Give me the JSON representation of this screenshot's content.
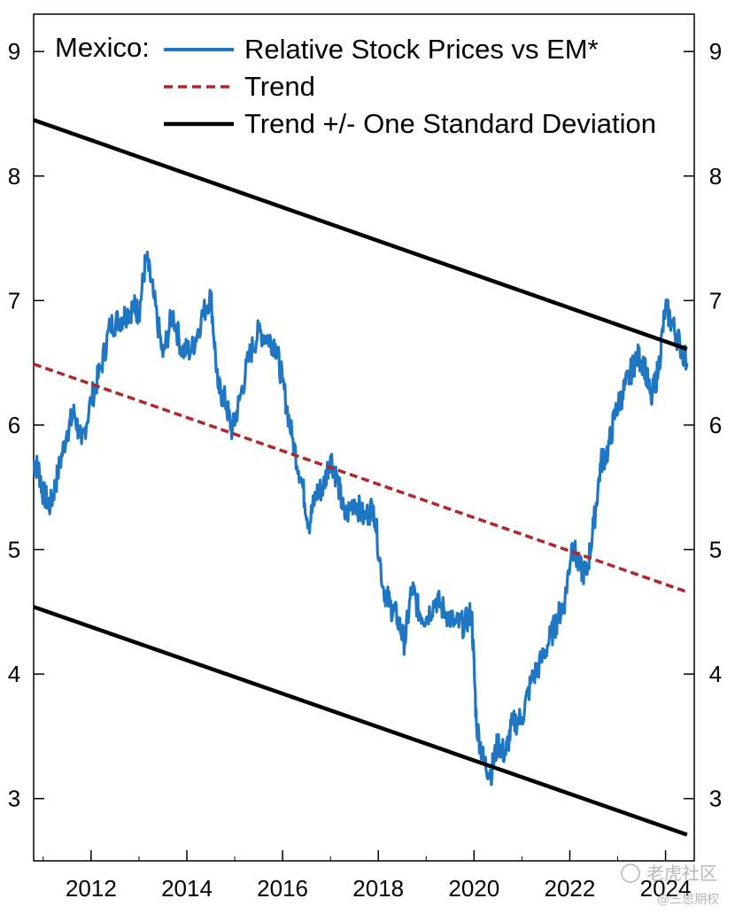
{
  "chart_data": {
    "type": "line",
    "title": "",
    "xlabel": "",
    "ylabel": "",
    "xlim": [
      2010.8,
      2024.6
    ],
    "ylim": [
      2.5,
      9.3
    ],
    "x_ticks": [
      2012,
      2014,
      2016,
      2018,
      2020,
      2022,
      2024
    ],
    "x_tick_labels": [
      "2012",
      "2014",
      "2016",
      "2018",
      "2020",
      "2022",
      "2024"
    ],
    "y_ticks": [
      3,
      4,
      5,
      6,
      7,
      8,
      9
    ],
    "y_tick_labels": [
      "3",
      "4",
      "5",
      "6",
      "7",
      "8",
      "9"
    ],
    "grid": false,
    "legend": {
      "placement": "top-left",
      "prefix": "Mexico:",
      "entries": [
        {
          "label": "Relative Stock Prices vs EM*",
          "color": "#1f77c4",
          "style": "solid"
        },
        {
          "label": "Trend",
          "color": "#b0272a",
          "style": "dashed"
        },
        {
          "label": "Trend +/- One Standard Deviation",
          "color": "#000000",
          "style": "solid"
        }
      ]
    },
    "series": [
      {
        "name": "Relative Stock Prices vs EM*",
        "color": "#1f77c4",
        "x": [
          2010.8,
          2010.9,
          2011.0,
          2011.15,
          2011.3,
          2011.5,
          2011.65,
          2011.8,
          2012.0,
          2012.2,
          2012.4,
          2012.6,
          2012.75,
          2012.9,
          2013.0,
          2013.15,
          2013.3,
          2013.5,
          2013.7,
          2013.9,
          2014.1,
          2014.3,
          2014.5,
          2014.65,
          2014.8,
          2014.95,
          2015.1,
          2015.3,
          2015.5,
          2015.7,
          2015.85,
          2016.0,
          2016.2,
          2016.4,
          2016.55,
          2016.7,
          2016.85,
          2017.0,
          2017.15,
          2017.3,
          2017.5,
          2017.7,
          2017.9,
          2018.1,
          2018.25,
          2018.4,
          2018.55,
          2018.7,
          2018.85,
          2019.0,
          2019.2,
          2019.4,
          2019.6,
          2019.8,
          2019.95,
          2020.05,
          2020.2,
          2020.35,
          2020.5,
          2020.65,
          2020.8,
          2021.0,
          2021.2,
          2021.4,
          2021.6,
          2021.75,
          2021.9,
          2022.05,
          2022.2,
          2022.35,
          2022.5,
          2022.65,
          2022.8,
          2022.95,
          2023.1,
          2023.25,
          2023.4,
          2023.55,
          2023.7,
          2023.85,
          2024.0,
          2024.15,
          2024.3,
          2024.45
        ],
        "y": [
          5.7,
          5.65,
          5.45,
          5.35,
          5.6,
          5.95,
          6.1,
          5.85,
          6.2,
          6.45,
          6.8,
          6.85,
          6.9,
          6.95,
          6.9,
          7.35,
          7.05,
          6.55,
          6.9,
          6.6,
          6.6,
          6.85,
          7.05,
          6.3,
          6.2,
          5.95,
          6.2,
          6.55,
          6.75,
          6.7,
          6.65,
          6.35,
          5.9,
          5.55,
          5.2,
          5.45,
          5.5,
          5.75,
          5.55,
          5.25,
          5.4,
          5.25,
          5.35,
          4.7,
          4.55,
          4.45,
          4.25,
          4.7,
          4.5,
          4.45,
          4.6,
          4.5,
          4.4,
          4.4,
          4.5,
          3.6,
          3.3,
          3.2,
          3.45,
          3.35,
          3.6,
          3.65,
          3.95,
          4.1,
          4.3,
          4.45,
          4.6,
          5.05,
          4.85,
          4.8,
          5.2,
          5.7,
          5.8,
          6.1,
          6.25,
          6.4,
          6.55,
          6.5,
          6.2,
          6.45,
          6.95,
          6.8,
          6.65,
          6.5
        ]
      },
      {
        "name": "Trend",
        "color": "#b0272a",
        "style": "dashed",
        "x": [
          2010.8,
          2024.45
        ],
        "y": [
          6.49,
          4.66
        ]
      },
      {
        "name": "Trend + One Standard Deviation",
        "color": "#000000",
        "x": [
          2010.8,
          2024.45
        ],
        "y": [
          8.45,
          6.61
        ]
      },
      {
        "name": "Trend - One Standard Deviation",
        "color": "#000000",
        "x": [
          2010.8,
          2024.45
        ],
        "y": [
          4.54,
          2.71
        ]
      }
    ]
  },
  "watermark": {
    "line1": "老虎社区",
    "line2": "@三思期权"
  }
}
